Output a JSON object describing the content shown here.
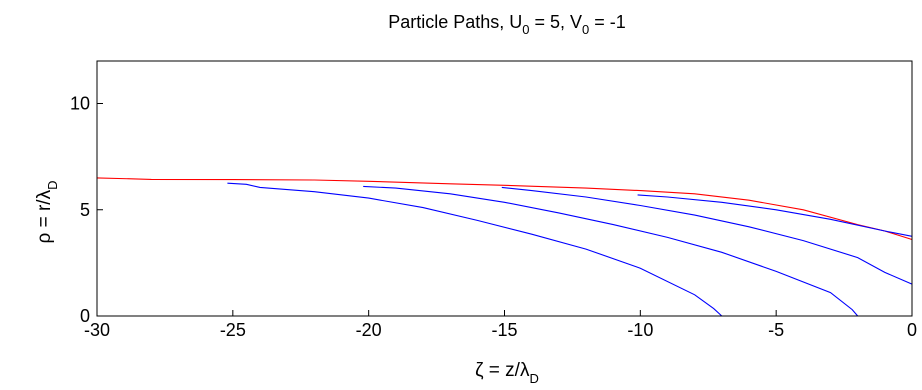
{
  "chart_data": {
    "type": "line",
    "title": {
      "prefix": "Particle Paths, U",
      "u_sub": "0",
      "mid": " = 5, V",
      "v_sub": "0",
      "suffix": " = -1"
    },
    "xlabel": {
      "main": "ζ = z/λ",
      "sub": "D"
    },
    "ylabel": {
      "main": "ρ = r/λ",
      "sub": "D"
    },
    "xlim": [
      -30,
      0
    ],
    "ylim": [
      0,
      12
    ],
    "xticks": [
      -30,
      -25,
      -20,
      -15,
      -10,
      -5,
      0
    ],
    "yticks": [
      0,
      5,
      10
    ],
    "xtick_labels": [
      "-30",
      "-25",
      "-20",
      "-15",
      "-10",
      "-5",
      "0"
    ],
    "ytick_labels": [
      "0",
      "5",
      "10"
    ],
    "grid": false,
    "colors": {
      "particle": "#0000ff",
      "boundary": "#ff0000",
      "axes": "#000000"
    },
    "series": [
      {
        "color": "#ff0000",
        "points": [
          [
            -30,
            6.5
          ],
          [
            -28,
            6.43
          ],
          [
            -25,
            6.42
          ],
          [
            -22,
            6.4
          ],
          [
            -20,
            6.34
          ],
          [
            -17,
            6.22
          ],
          [
            -15,
            6.15
          ],
          [
            -12,
            6.02
          ],
          [
            -10,
            5.9
          ],
          [
            -8,
            5.75
          ],
          [
            -6,
            5.45
          ],
          [
            -4,
            5.0
          ],
          [
            -2,
            4.3
          ],
          [
            -1,
            4.0
          ],
          [
            0,
            3.6
          ]
        ]
      },
      {
        "color": "#0000ff",
        "points": [
          [
            -25.2,
            6.25
          ],
          [
            -24.5,
            6.2
          ],
          [
            -24,
            6.05
          ],
          [
            -22,
            5.85
          ],
          [
            -20,
            5.55
          ],
          [
            -18,
            5.1
          ],
          [
            -16,
            4.5
          ],
          [
            -14,
            3.85
          ],
          [
            -12,
            3.15
          ],
          [
            -10,
            2.25
          ],
          [
            -8,
            1.0
          ],
          [
            -7.3,
            0.35
          ],
          [
            -7,
            0
          ]
        ]
      },
      {
        "color": "#0000ff",
        "points": [
          [
            -20.2,
            6.1
          ],
          [
            -19,
            6.02
          ],
          [
            -17,
            5.75
          ],
          [
            -15,
            5.35
          ],
          [
            -13,
            4.85
          ],
          [
            -11,
            4.3
          ],
          [
            -9,
            3.7
          ],
          [
            -7,
            3.0
          ],
          [
            -5,
            2.1
          ],
          [
            -3,
            1.1
          ],
          [
            -2.2,
            0.3
          ],
          [
            -2,
            0
          ]
        ]
      },
      {
        "color": "#0000ff",
        "points": [
          [
            -15.1,
            6.05
          ],
          [
            -14,
            5.9
          ],
          [
            -12,
            5.6
          ],
          [
            -10,
            5.2
          ],
          [
            -8,
            4.75
          ],
          [
            -6,
            4.2
          ],
          [
            -4,
            3.55
          ],
          [
            -2,
            2.75
          ],
          [
            -1,
            2.05
          ],
          [
            0,
            1.5
          ]
        ]
      },
      {
        "color": "#0000ff",
        "points": [
          [
            -10.1,
            5.7
          ],
          [
            -9,
            5.6
          ],
          [
            -7,
            5.35
          ],
          [
            -5,
            5.0
          ],
          [
            -3,
            4.55
          ],
          [
            -1,
            4.0
          ],
          [
            0,
            3.75
          ]
        ]
      }
    ]
  }
}
